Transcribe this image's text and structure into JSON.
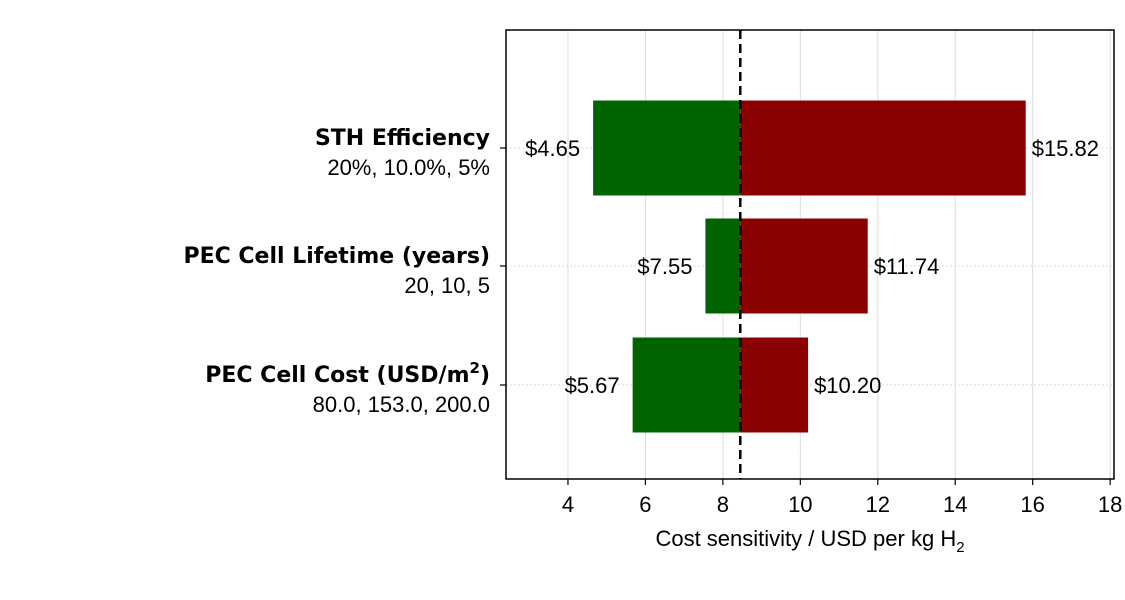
{
  "chart_data": {
    "type": "bar",
    "orientation": "horizontal",
    "style": "tornado",
    "xlabel": "Cost sensitivity / USD per kg H",
    "xlabel_subscript": "2",
    "xlim": [
      2.4,
      18.1
    ],
    "xticks": [
      4,
      6,
      8,
      10,
      12,
      14,
      16,
      18
    ],
    "grid": true,
    "baseline": 8.45,
    "colors": {
      "low": "#006400",
      "high": "#8b0000"
    },
    "categories": [
      {
        "title": "STH Efficiency",
        "title_superscript": "",
        "title_suffix": "",
        "subtitle": "20%, 10.0%, 5%",
        "low": 4.65,
        "low_label": "$4.65",
        "high": 15.82,
        "high_label": "$15.82"
      },
      {
        "title": "PEC Cell Lifetime (years)",
        "title_superscript": "",
        "title_suffix": "",
        "subtitle": "20, 10, 5",
        "low": 7.55,
        "low_label": "$7.55",
        "high": 11.74,
        "high_label": "$11.74"
      },
      {
        "title": "PEC Cell Cost (USD/m",
        "title_superscript": "2",
        "title_suffix": ")",
        "subtitle": "80.0, 153.0, 200.0",
        "low": 5.67,
        "low_label": "$5.67",
        "high": 10.2,
        "high_label": "$10.20"
      }
    ]
  }
}
